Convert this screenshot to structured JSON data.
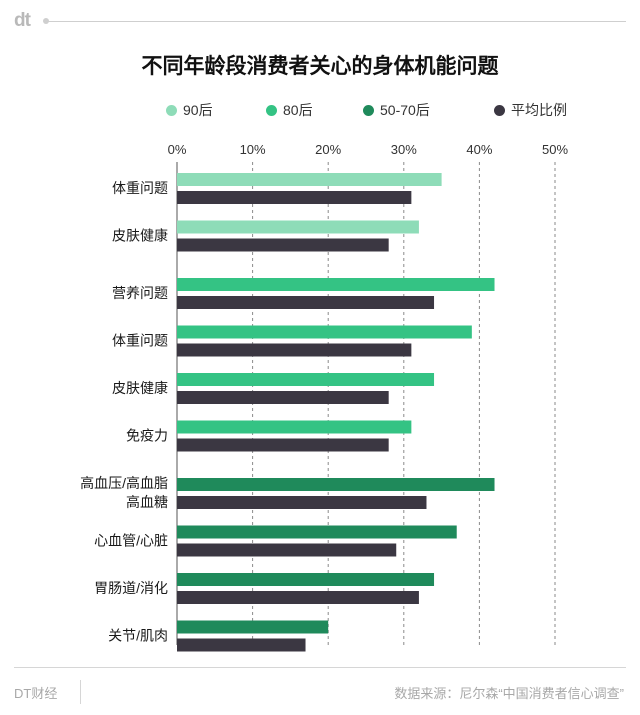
{
  "logo": "dt",
  "title": "不同年龄段消费者关心的身体机能问题",
  "legend": [
    {
      "label": "90后",
      "color": "#8edcb8"
    },
    {
      "label": "80后",
      "color": "#34c384"
    },
    {
      "label": "50-70后",
      "color": "#1f8a5b"
    },
    {
      "label": "平均比例",
      "color": "#3b3742"
    }
  ],
  "footer": {
    "brand": "DT财经",
    "source": "数据来源：尼尔森“中国消费者信心调查”"
  },
  "chart_data": {
    "type": "bar",
    "orientation": "horizontal",
    "title": "不同年龄段消费者关心的身体机能问题",
    "xlim": [
      0,
      50
    ],
    "x_ticks": [
      "0%",
      "10%",
      "20%",
      "30%",
      "40%",
      "50%"
    ],
    "grid": true,
    "legend_position": "top",
    "groups": [
      {
        "group": "90后",
        "color": "#8edcb8",
        "items": [
          {
            "label": [
              "体重问题"
            ],
            "value": 35,
            "average": 31
          },
          {
            "label": [
              "皮肤健康"
            ],
            "value": 32,
            "average": 28
          }
        ]
      },
      {
        "group": "80后",
        "color": "#34c384",
        "items": [
          {
            "label": [
              "营养问题"
            ],
            "value": 42,
            "average": 34
          },
          {
            "label": [
              "体重问题"
            ],
            "value": 39,
            "average": 31
          },
          {
            "label": [
              "皮肤健康"
            ],
            "value": 34,
            "average": 28
          },
          {
            "label": [
              "免疫力"
            ],
            "value": 31,
            "average": 28
          }
        ]
      },
      {
        "group": "50-70后",
        "color": "#1f8a5b",
        "items": [
          {
            "label": [
              "高血压/高血脂",
              "高血糖"
            ],
            "value": 42,
            "average": 33
          },
          {
            "label": [
              "心血管/心脏"
            ],
            "value": 37,
            "average": 29
          },
          {
            "label": [
              "胃肠道/消化"
            ],
            "value": 34,
            "average": 32
          },
          {
            "label": [
              "关节/肌肉"
            ],
            "value": 20,
            "average": 17
          }
        ]
      }
    ],
    "average_label": "平均比例",
    "average_color": "#3b3742"
  }
}
